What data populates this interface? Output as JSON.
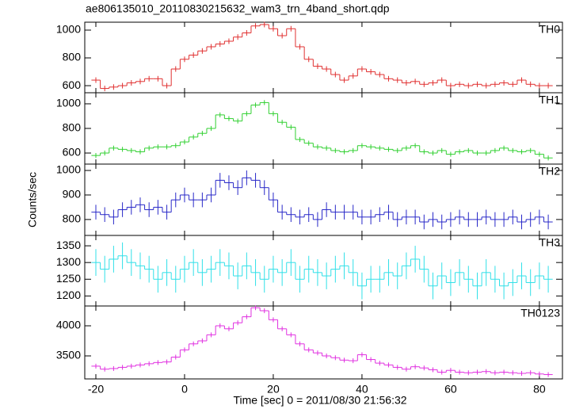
{
  "chart_data": [
    {
      "type": "line",
      "title": "ae806135010_20110830215632_wam3_trn_4band_short.qdp",
      "ylabel": "Counts/sec",
      "x": [
        -20,
        -18,
        -16,
        -14,
        -12,
        -10,
        -8,
        -6,
        -4,
        -2,
        0,
        2,
        4,
        6,
        8,
        10,
        12,
        14,
        16,
        18,
        20,
        22,
        24,
        26,
        28,
        30,
        32,
        34,
        36,
        38,
        40,
        42,
        44,
        46,
        48,
        50,
        52,
        54,
        56,
        58,
        60,
        62,
        64,
        66,
        68,
        70,
        72,
        74,
        76,
        78,
        80,
        82
      ],
      "series": [
        {
          "name": "TH0",
          "color": "#e03030",
          "values": [
            640,
            580,
            590,
            600,
            620,
            630,
            650,
            650,
            600,
            720,
            790,
            820,
            850,
            880,
            900,
            920,
            950,
            980,
            1030,
            1040,
            1010,
            960,
            1010,
            880,
            790,
            740,
            720,
            680,
            640,
            670,
            720,
            700,
            680,
            650,
            640,
            620,
            630,
            610,
            620,
            640,
            600,
            610,
            600,
            610,
            600,
            610,
            620,
            610,
            640,
            610,
            600,
            600
          ]
        }
      ],
      "error": 20,
      "xlim": [
        -22.5,
        85.2
      ],
      "ylim": [
        549,
        1057
      ],
      "yticks": [
        600,
        800,
        1000
      ]
    },
    {
      "type": "line",
      "x": [
        -20,
        -18,
        -16,
        -14,
        -12,
        -10,
        -8,
        -6,
        -4,
        -2,
        0,
        2,
        4,
        6,
        8,
        10,
        12,
        14,
        16,
        18,
        20,
        22,
        24,
        26,
        28,
        30,
        32,
        34,
        36,
        38,
        40,
        42,
        44,
        46,
        48,
        50,
        52,
        54,
        56,
        58,
        60,
        62,
        64,
        66,
        68,
        70,
        72,
        74,
        76,
        78,
        80,
        82
      ],
      "series": [
        {
          "name": "TH1",
          "color": "#30d030",
          "values": [
            580,
            600,
            640,
            630,
            620,
            610,
            640,
            650,
            650,
            660,
            690,
            730,
            760,
            800,
            910,
            880,
            860,
            920,
            990,
            1010,
            920,
            850,
            810,
            710,
            680,
            650,
            640,
            620,
            610,
            620,
            660,
            650,
            640,
            630,
            620,
            640,
            660,
            610,
            600,
            620,
            590,
            610,
            620,
            600,
            600,
            620,
            640,
            620,
            610,
            620,
            590,
            560
          ]
        }
      ],
      "error": 20,
      "xlim": [
        -22.5,
        85.2
      ],
      "ylim": [
        510,
        1090
      ],
      "yticks": [
        600,
        800,
        1000
      ]
    },
    {
      "type": "line",
      "x": [
        -20,
        -18,
        -16,
        -14,
        -12,
        -10,
        -8,
        -6,
        -4,
        -2,
        0,
        2,
        4,
        6,
        8,
        10,
        12,
        14,
        16,
        18,
        20,
        22,
        24,
        26,
        28,
        30,
        32,
        34,
        36,
        38,
        40,
        42,
        44,
        46,
        48,
        50,
        52,
        54,
        56,
        58,
        60,
        62,
        64,
        66,
        68,
        70,
        72,
        74,
        76,
        78,
        80,
        82
      ],
      "series": [
        {
          "name": "TH2",
          "color": "#2828c8",
          "values": [
            830,
            820,
            810,
            840,
            850,
            860,
            840,
            850,
            830,
            880,
            900,
            880,
            880,
            900,
            960,
            950,
            930,
            970,
            960,
            930,
            880,
            830,
            820,
            810,
            820,
            800,
            840,
            830,
            830,
            830,
            810,
            810,
            820,
            830,
            800,
            810,
            810,
            790,
            800,
            790,
            800,
            810,
            800,
            800,
            810,
            800,
            800,
            810,
            790,
            800,
            810,
            790
          ]
        }
      ],
      "error": 30,
      "xlim": [
        -22.5,
        85.2
      ],
      "ylim": [
        735,
        1026
      ],
      "yticks": [
        800,
        900,
        1000
      ]
    },
    {
      "type": "line",
      "x": [
        -20,
        -18,
        -16,
        -14,
        -12,
        -10,
        -8,
        -6,
        -4,
        -2,
        0,
        2,
        4,
        6,
        8,
        10,
        12,
        14,
        16,
        18,
        20,
        22,
        24,
        26,
        28,
        30,
        32,
        34,
        36,
        38,
        40,
        42,
        44,
        46,
        48,
        50,
        52,
        54,
        56,
        58,
        60,
        62,
        64,
        66,
        68,
        70,
        72,
        74,
        76,
        78,
        80,
        82
      ],
      "series": [
        {
          "name": "TH3",
          "color": "#30e0e8",
          "values": [
            1300,
            1280,
            1310,
            1320,
            1300,
            1290,
            1280,
            1250,
            1270,
            1250,
            1280,
            1300,
            1270,
            1280,
            1300,
            1290,
            1260,
            1290,
            1270,
            1250,
            1280,
            1270,
            1300,
            1250,
            1280,
            1270,
            1260,
            1280,
            1290,
            1270,
            1230,
            1250,
            1250,
            1270,
            1260,
            1290,
            1310,
            1280,
            1230,
            1260,
            1240,
            1270,
            1250,
            1230,
            1270,
            1250,
            1230,
            1240,
            1260,
            1240,
            1260,
            1250
          ]
        }
      ],
      "error": 40,
      "xlim": [
        -22.5,
        85.2
      ],
      "ylim": [
        1170,
        1381
      ],
      "yticks": [
        1200,
        1250,
        1300,
        1350
      ]
    },
    {
      "type": "line",
      "xlabel": "Time [sec] 0 = 2011/08/30 21:56:32",
      "x": [
        -20,
        -18,
        -16,
        -14,
        -12,
        -10,
        -8,
        -6,
        -4,
        -2,
        0,
        2,
        4,
        6,
        8,
        10,
        12,
        14,
        16,
        18,
        20,
        22,
        24,
        26,
        28,
        30,
        32,
        34,
        36,
        38,
        40,
        42,
        44,
        46,
        48,
        50,
        52,
        54,
        56,
        58,
        60,
        62,
        64,
        66,
        68,
        70,
        72,
        74,
        76,
        78,
        80,
        82
      ],
      "series": [
        {
          "name": "TH0123",
          "color": "#e030e0",
          "values": [
            3330,
            3280,
            3290,
            3310,
            3330,
            3350,
            3370,
            3390,
            3400,
            3480,
            3600,
            3700,
            3750,
            3850,
            4000,
            3950,
            4050,
            4150,
            4300,
            4250,
            4100,
            3950,
            3850,
            3700,
            3600,
            3550,
            3500,
            3470,
            3430,
            3420,
            3520,
            3440,
            3380,
            3350,
            3310,
            3280,
            3320,
            3300,
            3270,
            3230,
            3260,
            3230,
            3220,
            3230,
            3240,
            3220,
            3230,
            3220,
            3210,
            3220,
            3200,
            3190
          ]
        }
      ],
      "error": 40,
      "xlim": [
        -22.5,
        85.2
      ],
      "ylim": [
        3118,
        4329
      ],
      "yticks": [
        3500,
        4000
      ],
      "xticks": [
        -20,
        0,
        20,
        40,
        60,
        80
      ]
    }
  ]
}
